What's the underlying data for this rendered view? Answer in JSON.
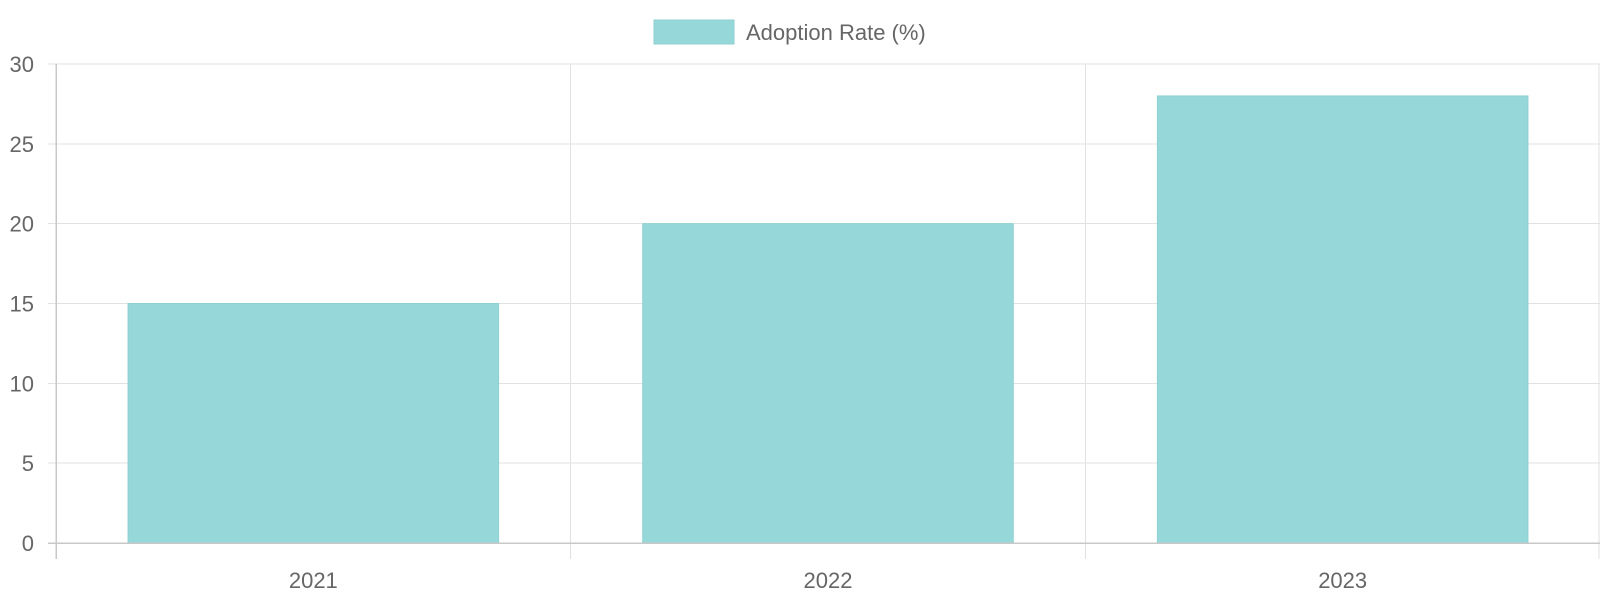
{
  "chart_data": {
    "type": "bar",
    "categories": [
      "2021",
      "2022",
      "2023"
    ],
    "series": [
      {
        "name": "Adoption Rate (%)",
        "values": [
          15,
          20,
          28
        ]
      }
    ],
    "title": "",
    "xlabel": "",
    "ylabel": "",
    "ylim": [
      0,
      30
    ],
    "y_ticks": [
      0,
      5,
      10,
      15,
      20,
      25,
      30
    ],
    "grid": true,
    "legend_position": "top-center",
    "colors": {
      "bar_fill": "#96d8d9",
      "bar_stroke": "#8fd1d2",
      "grid": "#e1e1e1",
      "axis": "#c8c8c8",
      "text": "#666666"
    }
  }
}
